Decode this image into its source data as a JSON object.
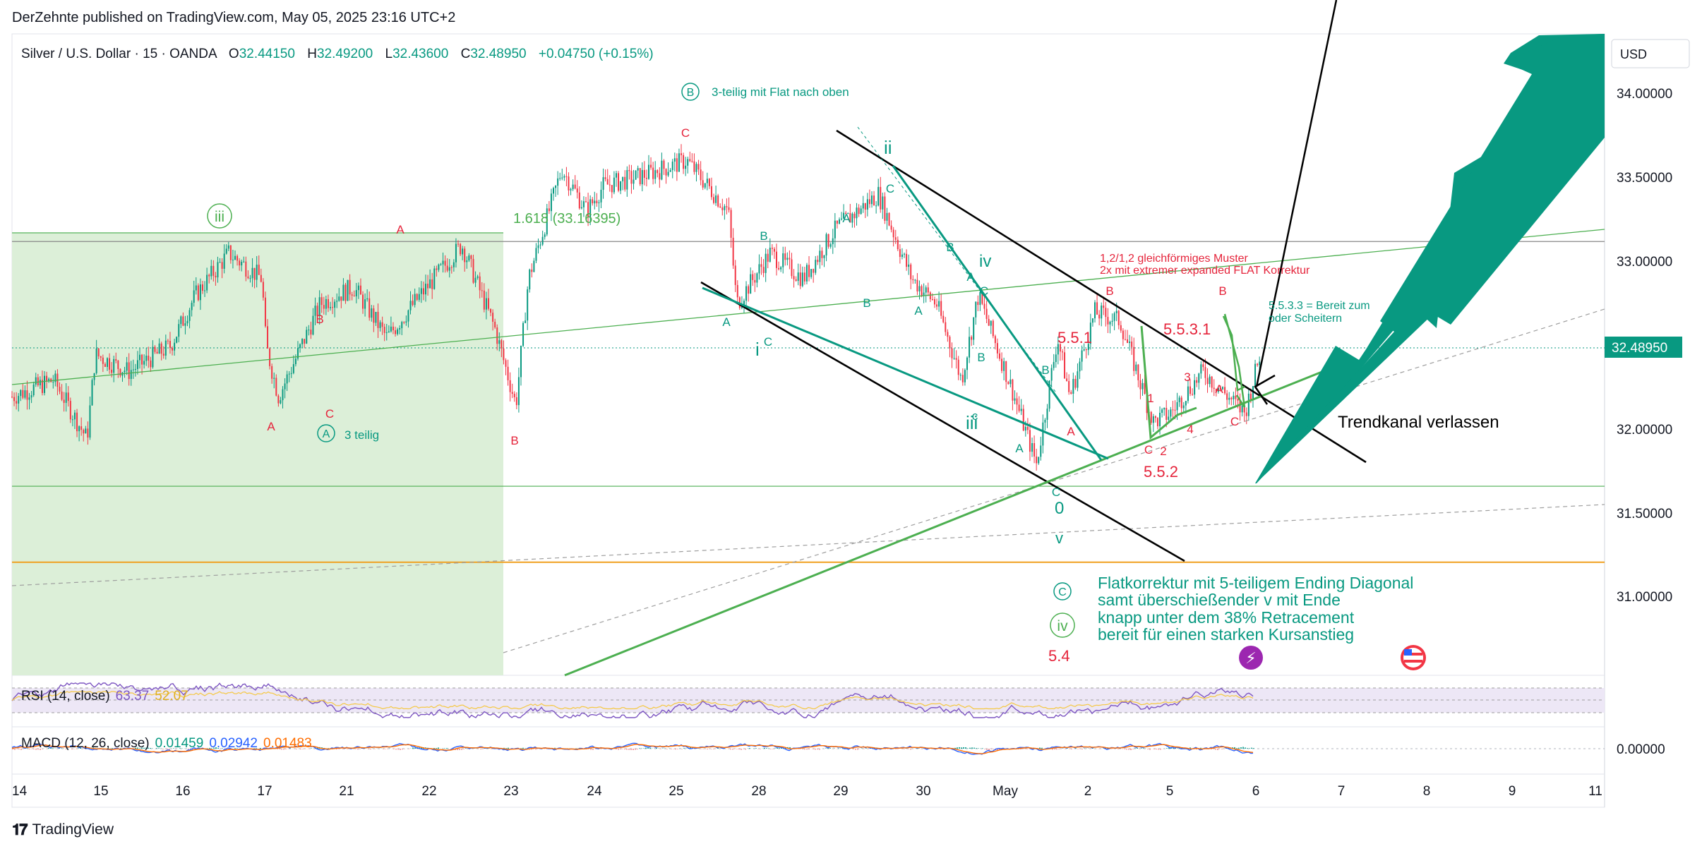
{
  "header": {
    "publisher_line": "DerZehnte published on TradingView.com, May 05, 2025 23:16 UTC+2"
  },
  "footer": {
    "brand": "TradingView",
    "logo": "tradingview-logo-icon"
  },
  "symbol_line": {
    "name": "Silver / U.S. Dollar · 15 · OANDA",
    "o_label": "O",
    "o_value": "32.44150",
    "h_label": "H",
    "h_value": "32.49200",
    "l_label": "L",
    "l_value": "32.43600",
    "c_label": "C",
    "c_value": "32.48950",
    "change": "+0.04750 (+0.15%)"
  },
  "price_axis": {
    "currency_button": "USD",
    "last_price_badge": "32.48950",
    "ticks": [
      "34.00000",
      "33.50000",
      "33.00000",
      "32.00000",
      "31.50000",
      "31.00000"
    ]
  },
  "time_axis": {
    "ticks": [
      "14",
      "15",
      "16",
      "17",
      "21",
      "22",
      "23",
      "24",
      "25",
      "28",
      "29",
      "30",
      "May",
      "2",
      "5",
      "6",
      "7",
      "8",
      "9",
      "11"
    ]
  },
  "indicators": {
    "rsi": {
      "label": "RSI (14, close)",
      "value": "63.37",
      "extra": "52.07"
    },
    "macd": {
      "label": "MACD (12, 26, close)",
      "v1": "0.01459",
      "v2": "0.02942",
      "v3": "0.01483",
      "axis_tick": "0.00000"
    }
  },
  "annotations": {
    "b_label": "3-teilig mit Flat nach oben",
    "b_circle": "B",
    "a_label": "3 teilig",
    "a_circle": "A",
    "fib": "1.618 (33.16395)",
    "pattern_note_1": "1,2/1,2 gleichförmiges Muster",
    "pattern_note_2": "2x mit extremer expanded FLAT Korrektur",
    "bereit_1": "5.5.3.3 = Bereit zum",
    "bereit_2": "oder Scheitern",
    "trendkanal": "Trendkanal verlassen",
    "flat_lines": [
      "Flatkorrektur mit 5-teiligem Ending Diagonal",
      "samt überschießender v mit Ende",
      "knapp unter dem 38% Retracement",
      "bereit für einen starken Kursanstieg"
    ],
    "c_circle": "C",
    "iv_circle": "iv",
    "iii_circle": "iii",
    "wave_labels": {
      "w551": "5.5.1",
      "w552": "5.5.2",
      "w5531": "5.5.3.1",
      "w54": "5.4",
      "ii": "ii",
      "iv": "iv",
      "i": "i",
      "iii": "iii",
      "v": "v",
      "zero": "0",
      "A": "A",
      "B": "B",
      "C": "C",
      "c": "c",
      "n1": "1",
      "n2": "2",
      "n3": "3",
      "n4": "4"
    }
  },
  "colors": {
    "up": "#089981",
    "down": "#f23645",
    "green_zone": "#dcefd8",
    "teal": "#089981",
    "label_red": "#e5243b",
    "line_green": "#4caf50",
    "orange": "#f0a020",
    "badge": "#089981"
  },
  "chart_data": {
    "type": "candlestick",
    "title": "Silver / U.S. Dollar · 15 · OANDA",
    "xlabel": "",
    "ylabel": "",
    "ylim": [
      30.55,
      34.35
    ],
    "x_ticks": [
      "14",
      "15",
      "16",
      "17",
      "21",
      "22",
      "23",
      "24",
      "25",
      "28",
      "29",
      "30",
      "May",
      "2",
      "5",
      "6",
      "7",
      "8",
      "9",
      "11"
    ],
    "y_ticks": [
      31.0,
      31.5,
      32.0,
      33.0,
      33.5,
      34.0
    ],
    "last_price": 32.4895,
    "series": [
      {
        "name": "price_path",
        "x": [
          0,
          0.5,
          0.9,
          1.0,
          1.4,
          1.9,
          2.2,
          2.6,
          3.0,
          3.05,
          3.2,
          3.7,
          4.1,
          4.5,
          4.9,
          5.4,
          5.8,
          6.05,
          6.2,
          6.6,
          6.9,
          7.1,
          7.5,
          8.1,
          8.6,
          8.7,
          9.1,
          9.5,
          9.9,
          10.4,
          10.8,
          11.1,
          11.4,
          11.6,
          12.0,
          12.3,
          12.55,
          12.7,
          13.0,
          13.3,
          13.7,
          13.9,
          14.3,
          14.8,
          15.0
        ],
        "y": [
          32.2,
          32.3,
          31.95,
          32.45,
          32.35,
          32.5,
          32.8,
          33.05,
          32.9,
          32.5,
          32.2,
          32.75,
          32.85,
          32.55,
          32.8,
          33.1,
          32.6,
          32.15,
          32.9,
          33.55,
          33.3,
          33.45,
          33.5,
          33.6,
          33.3,
          32.75,
          33.05,
          32.9,
          33.2,
          33.4,
          32.9,
          32.75,
          32.3,
          32.8,
          32.25,
          31.8,
          32.55,
          32.2,
          32.7,
          32.65,
          32.05,
          32.1,
          32.35,
          32.1,
          32.49
        ]
      }
    ],
    "horizontal_levels": [
      {
        "price": 33.12,
        "color": "#888888"
      },
      {
        "price": 31.67,
        "color": "#4caf50"
      },
      {
        "price": 31.22,
        "color": "#f0a020"
      }
    ],
    "grid": true,
    "legend": "none"
  }
}
